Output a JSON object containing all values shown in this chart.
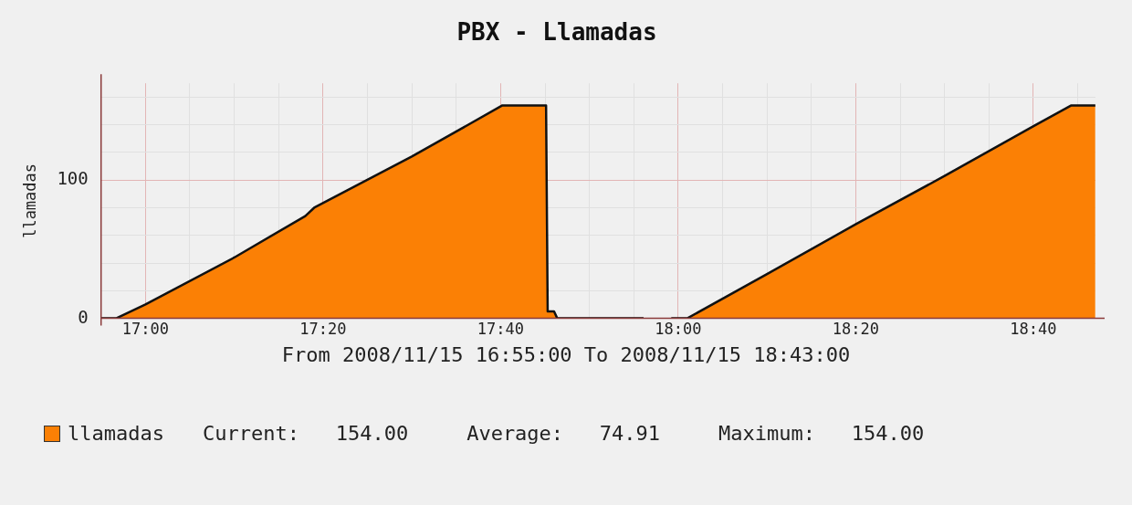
{
  "chart_data": {
    "type": "area",
    "title": "PBX - Llamadas",
    "ylabel": "llamadas",
    "x": [
      16.9167,
      16.945,
      17,
      17.1667,
      17.3,
      17.3167,
      17.5,
      17.67,
      17.752,
      17.755,
      17.767,
      17.773,
      17.935,
      17.96,
      17.987,
      18.017,
      18.1667,
      18.333,
      18.5,
      18.667,
      18.738,
      18.783
    ],
    "series": [
      {
        "name": "llamadas",
        "color": "#fb8005",
        "values": [
          0,
          0,
          10,
          44,
          74,
          80,
          117,
          154,
          154,
          5,
          5,
          0,
          0,
          null,
          0,
          0,
          32,
          68,
          103,
          139,
          154,
          154
        ]
      }
    ],
    "xlim": [
      16.9167,
      18.7833
    ],
    "xticks": [
      {
        "value": 17,
        "label": "17:00"
      },
      {
        "value": 17.0833,
        "label": null
      },
      {
        "value": 17.1667,
        "label": null
      },
      {
        "value": 17.25,
        "label": null
      },
      {
        "value": 17.3333,
        "label": "17:20"
      },
      {
        "value": 17.4167,
        "label": null
      },
      {
        "value": 17.5,
        "label": null
      },
      {
        "value": 17.5833,
        "label": null
      },
      {
        "value": 17.6667,
        "label": "17:40"
      },
      {
        "value": 17.75,
        "label": null
      },
      {
        "value": 17.8333,
        "label": null
      },
      {
        "value": 17.9167,
        "label": null
      },
      {
        "value": 18,
        "label": "18:00"
      },
      {
        "value": 18.0833,
        "label": null
      },
      {
        "value": 18.1667,
        "label": null
      },
      {
        "value": 18.25,
        "label": null
      },
      {
        "value": 18.3333,
        "label": "18:20"
      },
      {
        "value": 18.4167,
        "label": null
      },
      {
        "value": 18.5,
        "label": null
      },
      {
        "value": 18.5833,
        "label": null
      },
      {
        "value": 18.6667,
        "label": "18:40"
      },
      {
        "value": 18.75,
        "label": null
      }
    ],
    "ylim": [
      0,
      170
    ],
    "yticks": [
      0,
      {
        "value": 20,
        "label": null
      },
      {
        "value": 40,
        "label": null
      },
      {
        "value": 60,
        "label": null
      },
      {
        "value": 80,
        "label": null
      },
      100,
      {
        "value": 120,
        "label": null
      },
      {
        "value": 140,
        "label": null
      },
      {
        "value": 160,
        "label": null
      }
    ],
    "grid": true,
    "legend": "bottom",
    "marker": "none",
    "annotations": [
      "From 2008/11/15 16:55:00 To 2008/11/15 18:43:00",
      "Current:   154.00",
      "Average:   74.91",
      "Maximum:   154.00"
    ]
  }
}
